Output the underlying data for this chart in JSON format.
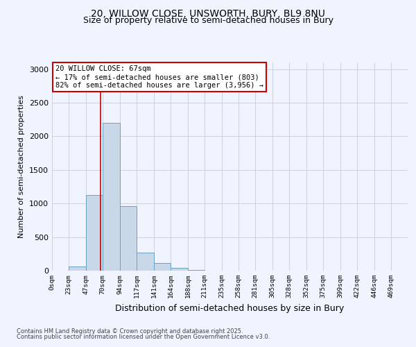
{
  "title_line1": "20, WILLOW CLOSE, UNSWORTH, BURY, BL9 8NU",
  "title_line2": "Size of property relative to semi-detached houses in Bury",
  "xlabel": "Distribution of semi-detached houses by size in Bury",
  "ylabel": "Number of semi-detached properties",
  "bin_labels": [
    "0sqm",
    "23sqm",
    "47sqm",
    "70sqm",
    "94sqm",
    "117sqm",
    "141sqm",
    "164sqm",
    "188sqm",
    "211sqm",
    "235sqm",
    "258sqm",
    "281sqm",
    "305sqm",
    "328sqm",
    "352sqm",
    "375sqm",
    "399sqm",
    "422sqm",
    "446sqm",
    "469sqm"
  ],
  "bar_heights": [
    0,
    60,
    1130,
    2200,
    960,
    270,
    110,
    40,
    10,
    5,
    2,
    1,
    0,
    0,
    0,
    0,
    0,
    0,
    0,
    0
  ],
  "bar_color": "#c8d8e8",
  "bar_edge_color": "#6aa0c0",
  "vline_x": 67,
  "vline_color": "#cc0000",
  "ylim": [
    0,
    3100
  ],
  "yticks": [
    0,
    500,
    1000,
    1500,
    2000,
    2500,
    3000
  ],
  "annotation_title": "20 WILLOW CLOSE: 67sqm",
  "annotation_line1": "← 17% of semi-detached houses are smaller (803)",
  "annotation_line2": "82% of semi-detached houses are larger (3,956) →",
  "annotation_box_color": "#ffffff",
  "annotation_box_edge": "#cc0000",
  "footer_line1": "Contains HM Land Registry data © Crown copyright and database right 2025.",
  "footer_line2": "Contains public sector information licensed under the Open Government Licence v3.0.",
  "background_color": "#f0f4ff",
  "bin_edges": [
    0,
    23,
    47,
    70,
    94,
    117,
    141,
    164,
    188,
    211,
    235,
    258,
    281,
    305,
    328,
    352,
    375,
    399,
    422,
    446,
    469,
    492
  ]
}
